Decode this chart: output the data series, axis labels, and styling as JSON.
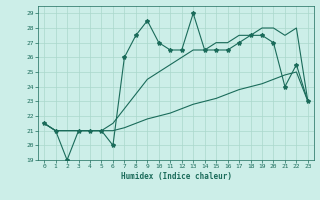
{
  "xlabel": "Humidex (Indice chaleur)",
  "xlim": [
    -0.5,
    23.5
  ],
  "ylim": [
    19,
    29.5
  ],
  "yticks": [
    19,
    20,
    21,
    22,
    23,
    24,
    25,
    26,
    27,
    28,
    29
  ],
  "xticks": [
    0,
    1,
    2,
    3,
    4,
    5,
    6,
    7,
    8,
    9,
    10,
    11,
    12,
    13,
    14,
    15,
    16,
    17,
    18,
    19,
    20,
    21,
    22,
    23
  ],
  "bg_color": "#cceee8",
  "line_color": "#1a6b5a",
  "grid_color": "#aad8cc",
  "series_jagged": [
    21.5,
    21.0,
    19.0,
    21.0,
    21.0,
    21.0,
    20.0,
    26.0,
    27.5,
    28.5,
    27.0,
    26.5,
    26.5,
    29.0,
    26.5,
    26.5,
    26.5,
    27.0,
    27.5,
    27.5,
    27.0,
    24.0,
    25.5,
    23.0
  ],
  "series_lower": [
    21.5,
    21.0,
    21.0,
    21.0,
    21.0,
    21.0,
    21.0,
    21.2,
    21.5,
    21.8,
    22.0,
    22.2,
    22.5,
    22.8,
    23.0,
    23.2,
    23.5,
    23.8,
    24.0,
    24.2,
    24.5,
    24.8,
    25.0,
    23.0
  ],
  "series_mid": [
    21.5,
    21.0,
    21.0,
    21.0,
    21.0,
    21.0,
    21.5,
    22.5,
    23.5,
    24.5,
    25.0,
    25.5,
    26.0,
    26.5,
    26.5,
    27.0,
    27.0,
    27.5,
    27.5,
    28.0,
    28.0,
    27.5,
    28.0,
    23.0
  ]
}
